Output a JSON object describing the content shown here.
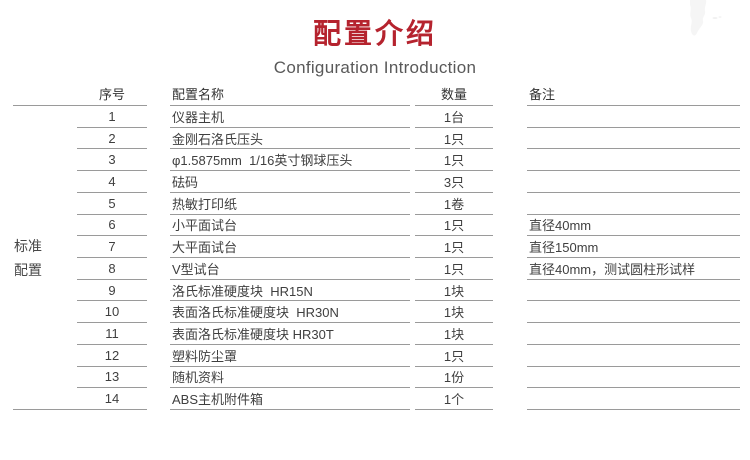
{
  "page": {
    "title": "配置介绍",
    "subtitle": "Configuration Introduction"
  },
  "colors": {
    "title_red": "#b5232e",
    "line_gray": "#9a9a9a",
    "text_dark": "#3f3f3f"
  },
  "icons": {
    "decoration": "world-map-fragment"
  },
  "table": {
    "group_label_line1": "标准",
    "group_label_line2": "配置",
    "headers": {
      "no": "序号",
      "name": "配置名称",
      "qty": "数量",
      "note": "备注"
    },
    "rows": [
      {
        "no": "1",
        "name": "仪器主机",
        "qty": "1台",
        "note": ""
      },
      {
        "no": "2",
        "name": "金刚石洛氏压头",
        "qty": "1只",
        "note": ""
      },
      {
        "no": "3",
        "name": "φ1.5875mm  1/16英寸钢球压头",
        "qty": "1只",
        "note": ""
      },
      {
        "no": "4",
        "name": "砝码",
        "qty": "3只",
        "note": ""
      },
      {
        "no": "5",
        "name": "热敏打印纸",
        "qty": "1卷",
        "note": ""
      },
      {
        "no": "6",
        "name": "小平面试台",
        "qty": "1只",
        "note": "直径40mm"
      },
      {
        "no": "7",
        "name": "大平面试台",
        "qty": "1只",
        "note": "直径150mm"
      },
      {
        "no": "8",
        "name": "V型试台",
        "qty": "1只",
        "note": "直径40mm，测试圆柱形试样"
      },
      {
        "no": "9",
        "name": "洛氏标准硬度块  HR15N",
        "qty": "1块",
        "note": ""
      },
      {
        "no": "10",
        "name": "表面洛氏标准硬度块  HR30N",
        "qty": "1块",
        "note": ""
      },
      {
        "no": "11",
        "name": "表面洛氏标准硬度块 HR30T",
        "qty": "1块",
        "note": ""
      },
      {
        "no": "12",
        "name": "塑料防尘罩",
        "qty": "1只",
        "note": ""
      },
      {
        "no": "13",
        "name": "随机资料",
        "qty": "1份",
        "note": ""
      },
      {
        "no": "14",
        "name": "ABS主机附件箱",
        "qty": "1个",
        "note": ""
      }
    ]
  }
}
